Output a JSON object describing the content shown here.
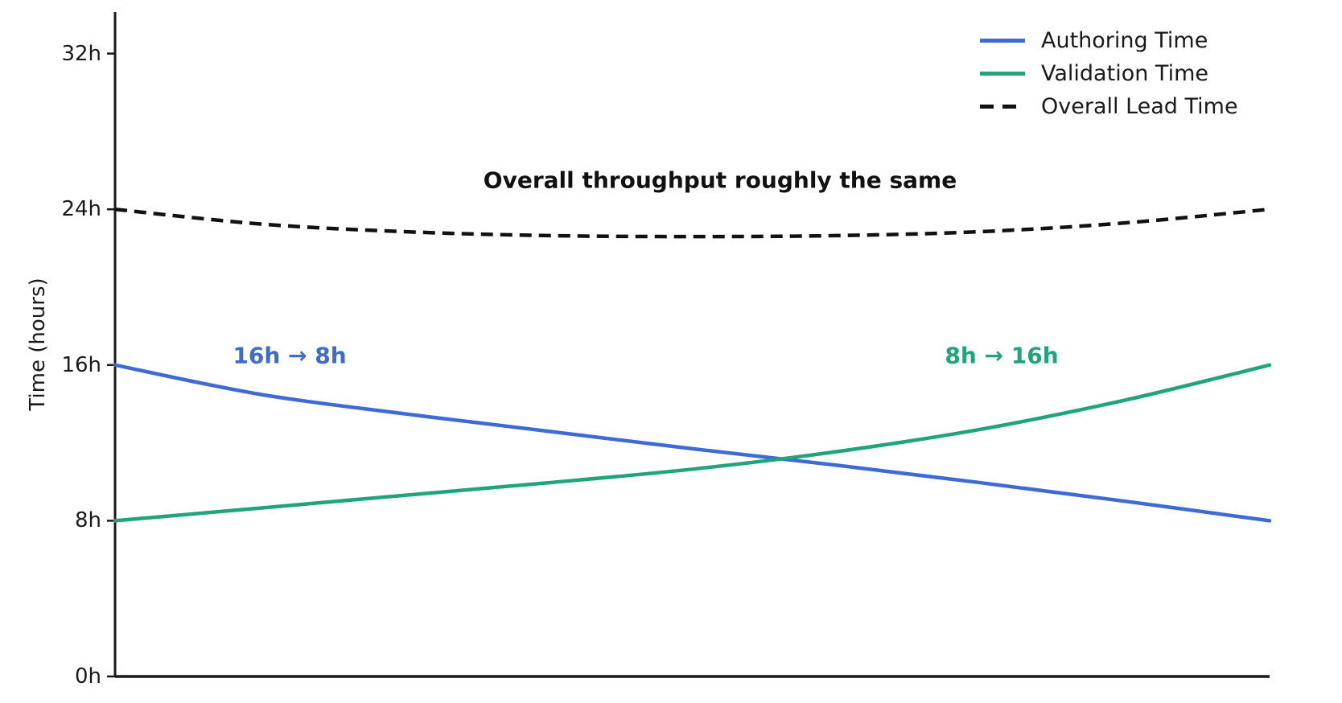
{
  "figure": {
    "background": "#ffffff",
    "axis_color": "#1a1a1a"
  },
  "ylabel": "Time (hours)",
  "annotations": {
    "overall_note": {
      "text": "Overall throughput roughly the same",
      "color": "#111111"
    },
    "authoring_note": {
      "text": "16h → 8h",
      "color": "#3E6BD3"
    },
    "validation_note": {
      "text": "8h → 16h",
      "color": "#1FA47C"
    }
  },
  "legend": {
    "position": "upper right",
    "items": [
      {
        "label": "Authoring Time",
        "color": "#3E6BD3",
        "style": "solid"
      },
      {
        "label": "Validation Time",
        "color": "#1FA47C",
        "style": "solid"
      },
      {
        "label": "Overall Lead Time",
        "color": "#111111",
        "style": "dashed"
      }
    ]
  },
  "chart_data": {
    "type": "line",
    "title": "",
    "xlabel": "",
    "ylabel": "Time (hours)",
    "ylim": [
      0,
      34
    ],
    "grid": false,
    "legend_position": "upper right",
    "ytick_values": [
      32,
      24,
      16,
      8,
      0
    ],
    "ytick_labels": [
      "32h",
      "24h",
      "16h",
      "8h",
      "0h"
    ],
    "xtick_labels": [],
    "x": [
      0,
      0.125,
      0.25,
      0.375,
      0.5,
      0.625,
      0.75,
      0.875,
      1
    ],
    "series": [
      {
        "name": "Authoring Time",
        "color": "#3E6BD3",
        "style": "solid",
        "values": [
          16,
          14.5,
          13.5,
          12.6,
          11.7,
          10.85,
          9.95,
          9.0,
          8
        ]
      },
      {
        "name": "Validation Time",
        "color": "#1FA47C",
        "style": "solid",
        "values": [
          8,
          8.65,
          9.3,
          9.95,
          10.65,
          11.55,
          12.7,
          14.2,
          16
        ]
      },
      {
        "name": "Overall Lead Time",
        "color": "#111111",
        "style": "dashed",
        "values": [
          24,
          23.25,
          22.85,
          22.65,
          22.6,
          22.65,
          22.85,
          23.3,
          24
        ]
      }
    ]
  }
}
